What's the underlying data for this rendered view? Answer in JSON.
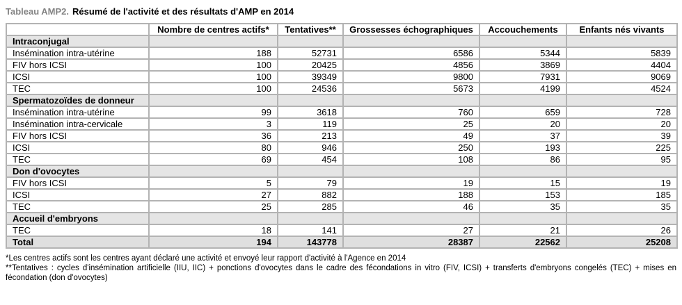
{
  "title": {
    "prefix": "Tableau AMP2.",
    "main": "Résumé de l'activité et des résultats d'AMP en 2014"
  },
  "colors": {
    "title_prefix_gray": "#848484",
    "table_border": "#b3b3b3",
    "section_row_bg": "#e5e5e5",
    "total_row_bg": "#dfdfdf",
    "text": "#000000",
    "cell_bg": "#ffffff"
  },
  "table": {
    "columns": [
      "",
      "Nombre de centres actifs*",
      "Tentatives**",
      "Grossesses échographiques",
      "Accouchements",
      "Enfants nés vivants"
    ],
    "sections": [
      {
        "label": "Intraconjugal",
        "rows": [
          {
            "label": "Insémination intra-utérine",
            "values": [
              "188",
              "52731",
              "6586",
              "5344",
              "5839"
            ]
          },
          {
            "label": "FIV hors ICSI",
            "values": [
              "100",
              "20425",
              "4856",
              "3869",
              "4404"
            ]
          },
          {
            "label": "ICSI",
            "values": [
              "100",
              "39349",
              "9800",
              "7931",
              "9069"
            ]
          },
          {
            "label": "TEC",
            "values": [
              "100",
              "24536",
              "5673",
              "4199",
              "4524"
            ]
          }
        ]
      },
      {
        "label": "Spermatozoïdes de donneur",
        "rows": [
          {
            "label": "Insémination intra-utérine",
            "values": [
              "99",
              "3618",
              "760",
              "659",
              "728"
            ]
          },
          {
            "label": "Insémination intra-cervicale",
            "values": [
              "3",
              "119",
              "25",
              "20",
              "20"
            ]
          },
          {
            "label": "FIV hors ICSI",
            "values": [
              "36",
              "213",
              "49",
              "37",
              "39"
            ]
          },
          {
            "label": "ICSI",
            "values": [
              "80",
              "946",
              "250",
              "193",
              "225"
            ]
          },
          {
            "label": "TEC",
            "values": [
              "69",
              "454",
              "108",
              "86",
              "95"
            ]
          }
        ]
      },
      {
        "label": "Don d'ovocytes",
        "rows": [
          {
            "label": "FIV hors ICSI",
            "values": [
              "5",
              "79",
              "19",
              "15",
              "19"
            ]
          },
          {
            "label": "ICSI",
            "values": [
              "27",
              "882",
              "188",
              "153",
              "185"
            ]
          },
          {
            "label": "TEC",
            "values": [
              "25",
              "285",
              "46",
              "35",
              "35"
            ]
          }
        ]
      },
      {
        "label": "Accueil d'embryons",
        "rows": [
          {
            "label": "TEC",
            "values": [
              "18",
              "141",
              "27",
              "21",
              "26"
            ]
          }
        ]
      }
    ],
    "total": {
      "label": "Total",
      "values": [
        "194",
        "143778",
        "28387",
        "22562",
        "25208"
      ]
    }
  },
  "footnotes": [
    "*Les centres actifs sont les centres ayant déclaré une activité et envoyé leur rapport d'activité à l'Agence en 2014",
    "**Tentatives : cycles d'insémination artificielle (IIU, IIC) + ponctions d'ovocytes dans le cadre des fécondations in vitro (FIV, ICSI) + transferts d'embryons congelés (TEC) + mises en fécondation (don d'ovocytes)"
  ]
}
